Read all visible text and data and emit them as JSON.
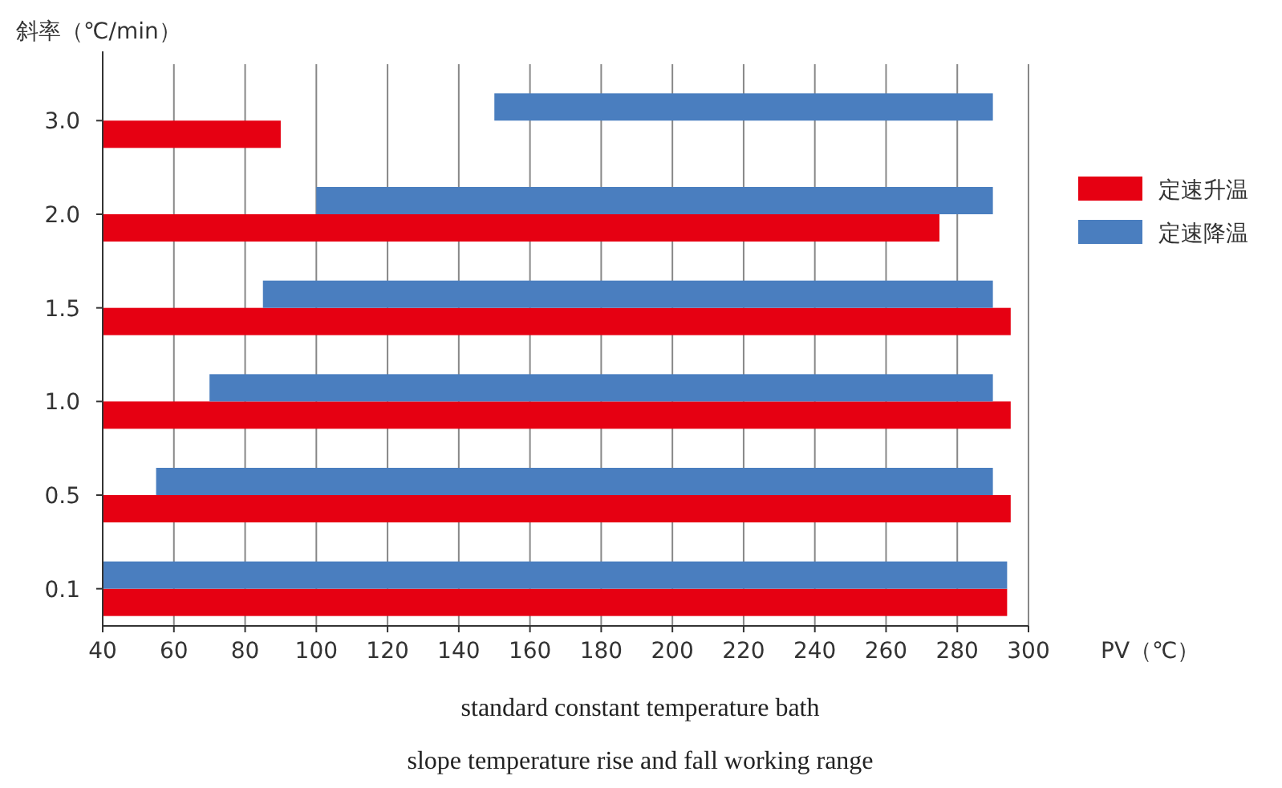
{
  "chart_data": {
    "type": "bar",
    "orientation": "horizontal",
    "ylabel": "斜率（℃/min）",
    "xlabel": "PV（℃）",
    "categories": [
      "3.0",
      "2.0",
      "1.5",
      "1.0",
      "0.5",
      "0.1"
    ],
    "series": [
      {
        "name": "定速升温",
        "color": "#e60012",
        "base": [
          40,
          40,
          40,
          40,
          40,
          40
        ],
        "values": [
          50,
          235,
          255,
          255,
          255,
          254
        ]
      },
      {
        "name": "定速降温",
        "color": "#4a7ebf",
        "base": [
          150,
          100,
          85,
          70,
          55,
          40
        ],
        "values": [
          140,
          190,
          205,
          220,
          235,
          254
        ]
      }
    ],
    "xlim": [
      40,
      300
    ],
    "xticks": [
      40,
      60,
      80,
      100,
      120,
      140,
      160,
      180,
      200,
      220,
      240,
      260,
      280,
      300
    ],
    "grid": "x",
    "legend": "right",
    "annotations": [
      "standard constant temperature bath",
      "slope temperature rise and fall working range"
    ]
  }
}
